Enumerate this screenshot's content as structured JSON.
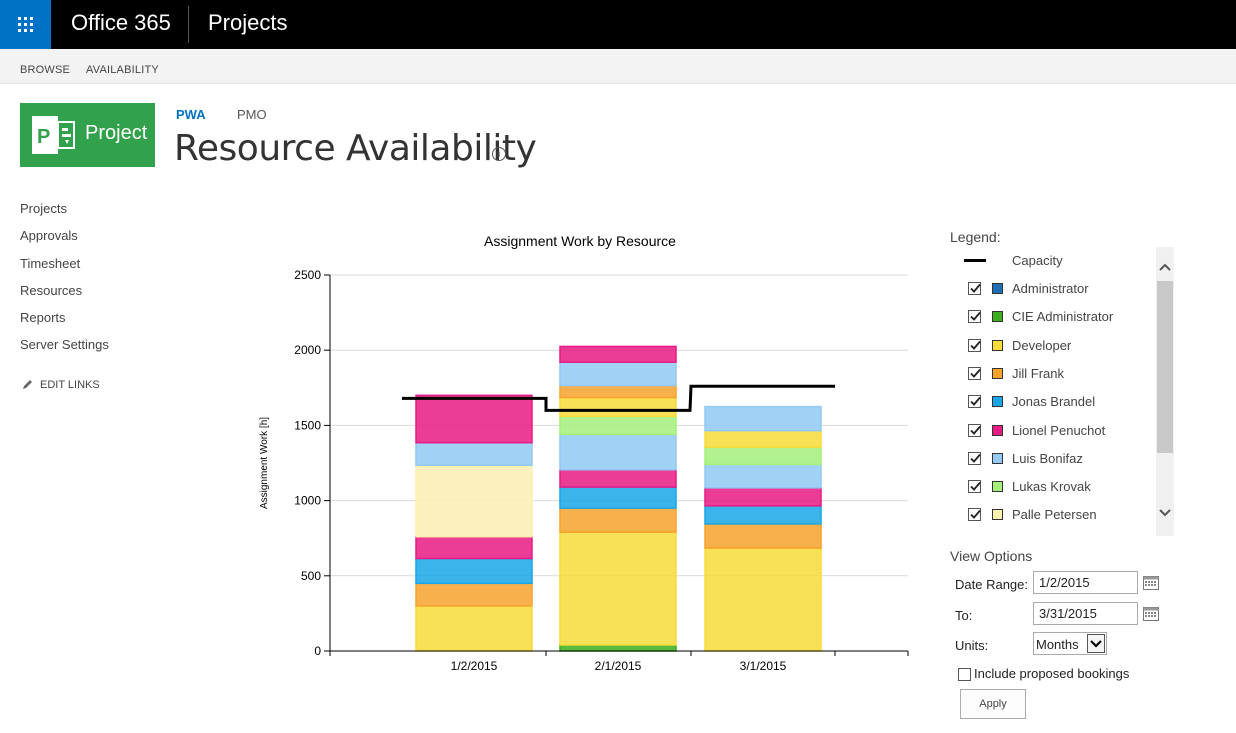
{
  "suite": {
    "brand": "Office 365",
    "app": "Projects"
  },
  "ribbon": {
    "browse": "BROWSE",
    "availability": "AVAILABILITY"
  },
  "logo": {
    "text": "Project"
  },
  "breadcrumb": {
    "pwa": "PWA",
    "pmo": "PMO"
  },
  "page": {
    "title": "Resource Availability",
    "info_icon": "info-icon"
  },
  "nav": {
    "items": [
      "Projects",
      "Approvals",
      "Timesheet",
      "Resources",
      "Reports",
      "Server Settings"
    ],
    "edit_links": "EDIT LINKS"
  },
  "legend": {
    "title": "Legend:",
    "capacity_label": "Capacity",
    "items": [
      {
        "label": "Administrator",
        "color": "#1f6fb2",
        "checked": true
      },
      {
        "label": "CIE Administrator",
        "color": "#3cae1f",
        "checked": true
      },
      {
        "label": "Developer",
        "color": "#f8dc3a",
        "checked": true
      },
      {
        "label": "Jill Frank",
        "color": "#f6a22b",
        "checked": true
      },
      {
        "label": "Jonas Brandel",
        "color": "#19a6e8",
        "checked": true
      },
      {
        "label": "Lionel Penuchot",
        "color": "#e81b84",
        "checked": true
      },
      {
        "label": "Luis Bonifaz",
        "color": "#92c9f5",
        "checked": true
      },
      {
        "label": "Lukas Krovak",
        "color": "#a5f07a",
        "checked": true
      },
      {
        "label": "Palle Petersen",
        "color": "#fcefb0",
        "checked": true
      }
    ]
  },
  "view_options": {
    "title": "View Options",
    "date_range_label": "Date Range:",
    "date_range_value": "1/2/2015",
    "to_label": "To:",
    "to_value": "3/31/2015",
    "units_label": "Units:",
    "units_value": "Months",
    "proposed_label": "Include proposed bookings",
    "apply_label": "Apply"
  },
  "chart_data": {
    "type": "bar",
    "stacked": true,
    "title": "Assignment Work by Resource",
    "ylabel": "Assignment Work [h]",
    "xlabel": "",
    "ylim": [
      0,
      2500
    ],
    "yticks": [
      0,
      500,
      1000,
      1500,
      2000,
      2500
    ],
    "grid": true,
    "categories": [
      "1/2/2015",
      "2/1/2015",
      "3/1/2015"
    ],
    "series": [
      {
        "name": "CIE Administrator",
        "color": "#3cae1f",
        "values": [
          0,
          40,
          0
        ]
      },
      {
        "name": "Developer",
        "color": "#f8dc3a",
        "values": [
          300,
          750,
          685
        ]
      },
      {
        "name": "Jill Frank",
        "color": "#f6a22b",
        "values": [
          150,
          160,
          160
        ]
      },
      {
        "name": "Jonas Brandel",
        "color": "#19a6e8",
        "values": [
          165,
          140,
          120
        ]
      },
      {
        "name": "Lionel Penuchot",
        "color": "#e81b84",
        "values": [
          145,
          115,
          120
        ]
      },
      {
        "name": "Palle Petersen",
        "color": "#fcefb0",
        "values": [
          475,
          0,
          0
        ]
      },
      {
        "name": "Luis Bonifaz",
        "color": "#92c9f5",
        "values": [
          150,
          235,
          155
        ]
      },
      {
        "name": "Lukas Krovak",
        "color": "#a5f07a",
        "values": [
          0,
          120,
          115
        ]
      },
      {
        "name": "Developer",
        "color": "#f8dc3a",
        "values": [
          0,
          125,
          110
        ]
      },
      {
        "name": "Jill Frank",
        "color": "#f6a22b",
        "values": [
          0,
          80,
          0
        ]
      },
      {
        "name": "Luis Bonifaz",
        "color": "#92c9f5",
        "values": [
          0,
          155,
          160
        ]
      },
      {
        "name": "Lionel Penuchot",
        "color": "#e81b84",
        "values": [
          0,
          105,
          0
        ]
      },
      {
        "name": "Lionel Penuchot",
        "color": "#e81b84",
        "values": [
          315,
          0,
          0
        ]
      }
    ],
    "capacity": {
      "name": "Capacity",
      "points": [
        {
          "x": "1/2/2015",
          "y": 1680
        },
        {
          "x": "2/1/2015",
          "y": 1600
        },
        {
          "x": "3/1/2015",
          "y": 1760
        }
      ]
    }
  }
}
